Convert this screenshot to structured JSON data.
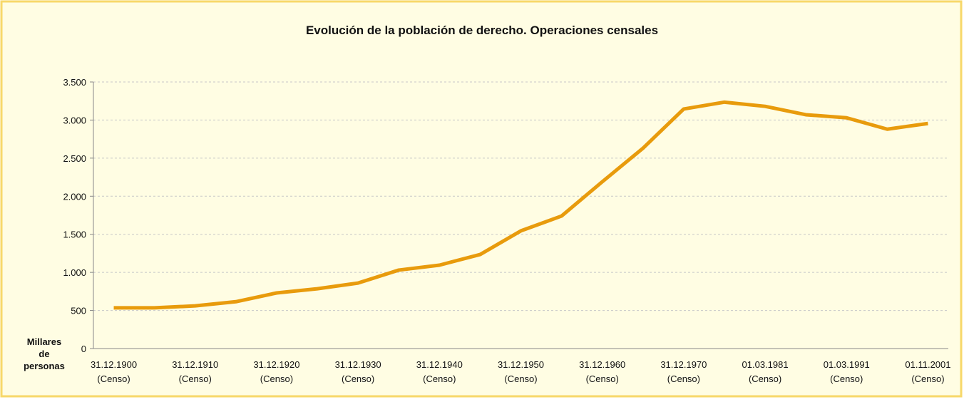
{
  "chart_data": {
    "type": "line",
    "title": "Evolución de la población de derecho. Operaciones censales",
    "y_label": "Millares de personas",
    "categories": [
      "31.12.1900\n(Censo)",
      null,
      "31.12.1910\n(Censo)",
      null,
      "31.12.1920\n(Censo)",
      null,
      "31.12.1930\n(Censo)",
      null,
      "31.12.1940\n(Censo)",
      null,
      "31.12.1950\n(Censo)",
      null,
      "31.12.1960\n(Censo)",
      null,
      "31.12.1970\n(Censo)",
      null,
      "01.03.1981\n(Censo)",
      null,
      "01.03.1991\n(Censo)",
      null,
      "01.11.2001\n(Censo)"
    ],
    "series": [
      {
        "color": "#e89b0c",
        "values": [
          535,
          535,
          560,
          615,
          730,
          785,
          860,
          1030,
          1095,
          1235,
          1545,
          1740,
          2190,
          2630,
          3145,
          3235,
          3180,
          3070,
          3030,
          2880,
          2955
        ]
      }
    ],
    "ylim": [
      0,
      3500
    ],
    "yticks": [
      0,
      {
        "value": 500,
        "label": "500"
      },
      {
        "value": 1000,
        "label": "1.000"
      },
      {
        "value": 1500,
        "label": "1.500"
      },
      {
        "value": 2000,
        "label": "2.000"
      },
      {
        "value": 2500,
        "label": "2.500"
      },
      {
        "value": 3000,
        "label": "3.000"
      },
      {
        "value": 3500,
        "label": "3.500"
      }
    ],
    "grid": true
  }
}
